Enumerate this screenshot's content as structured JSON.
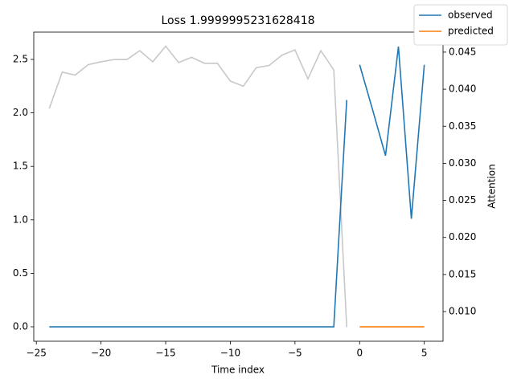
{
  "chart_data": {
    "type": "line",
    "title": "Loss 1.9999995231628418",
    "xlabel": "Time index",
    "y2label": "Attention",
    "xlim": [
      -25.2,
      6.45
    ],
    "xticks": [
      {
        "value": -25,
        "label": "−25"
      },
      {
        "value": -20,
        "label": "−20"
      },
      {
        "value": -15,
        "label": "−15"
      },
      {
        "value": -10,
        "label": "−10"
      },
      {
        "value": -5,
        "label": "−5"
      },
      0,
      5
    ],
    "ylim": [
      -0.135,
      2.755
    ],
    "yticks": [
      {
        "value": 0,
        "label": "0.0"
      },
      {
        "value": 0.5,
        "label": "0.5"
      },
      {
        "value": 1,
        "label": "1.0"
      },
      {
        "value": 1.5,
        "label": "1.5"
      },
      {
        "value": 2,
        "label": "2.0"
      },
      {
        "value": 2.5,
        "label": "2.5"
      }
    ],
    "y2lim": [
      0.006,
      0.0477
    ],
    "y2ticks": [
      {
        "value": 0.01,
        "label": "0.010"
      },
      {
        "value": 0.015,
        "label": "0.015"
      },
      {
        "value": 0.02,
        "label": "0.020"
      },
      {
        "value": 0.025,
        "label": "0.025"
      },
      {
        "value": 0.03,
        "label": "0.030"
      },
      {
        "value": 0.035,
        "label": "0.035"
      },
      {
        "value": 0.04,
        "label": "0.040"
      },
      {
        "value": 0.045,
        "label": "0.045"
      }
    ],
    "legend": "upper right",
    "series": [
      {
        "color": "#c8c8c8",
        "axis": "y2",
        "x": [
          -24,
          -23,
          -22,
          -21,
          -20,
          -19,
          -18,
          -17,
          -16,
          -15,
          -14,
          -13,
          -12,
          -11,
          -10,
          -9,
          -8,
          -7,
          -6,
          -5,
          -4,
          -3,
          -2,
          -1
        ],
        "values": [
          0.0374,
          0.0423,
          0.0419,
          0.0433,
          0.0437,
          0.044,
          0.044,
          0.0452,
          0.0437,
          0.0458,
          0.0436,
          0.0443,
          0.0435,
          0.0435,
          0.0411,
          0.0404,
          0.0429,
          0.0432,
          0.0446,
          0.0453,
          0.0414,
          0.0452,
          0.0426,
          0.0079
        ]
      },
      {
        "name": "observed",
        "color": "#1f77b4",
        "x": [
          -24,
          -23,
          -22,
          -21,
          -20,
          -19,
          -18,
          -17,
          -16,
          -15,
          -14,
          -13,
          -12,
          -11,
          -10,
          -9,
          -8,
          -7,
          -6,
          -5,
          -4,
          -3,
          -2,
          -1
        ],
        "values": [
          0,
          0,
          0,
          0,
          0,
          0,
          0,
          0,
          0,
          0,
          0,
          0,
          0,
          0,
          0,
          0,
          0,
          0,
          0,
          0,
          0,
          0,
          0,
          2.12
        ]
      },
      {
        "color": "#1f77b4",
        "x": [
          0,
          1,
          2,
          3,
          4,
          5
        ],
        "values": [
          2.45,
          2.03,
          1.6,
          2.62,
          1.01,
          2.45
        ]
      },
      {
        "name": "predicted",
        "color": "#ff7f0e",
        "x": [
          0,
          1,
          2,
          3,
          4,
          5
        ],
        "values": [
          0,
          0,
          0,
          0,
          0,
          0
        ]
      }
    ]
  }
}
